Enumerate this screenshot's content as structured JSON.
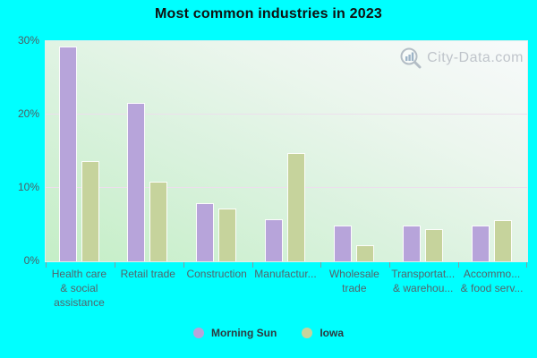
{
  "title": "Most common industries in 2023",
  "watermark": {
    "text": "City-Data.com",
    "icon": "magnifier-chart-icon"
  },
  "colors": {
    "background": "#00ffff",
    "morning_sun": "#b7a4da",
    "iowa": "#c6d39c",
    "gridline": "#eddfed",
    "axis_text": "#4d5d63",
    "title_text": "#101010",
    "watermark_text": "#b6bbc3"
  },
  "chart_data": {
    "type": "bar",
    "title": "Most common industries in 2023",
    "categories": [
      "Health care & social assistance",
      "Retail trade",
      "Construction",
      "Manufacturing",
      "Wholesale trade",
      "Transportation & warehousing",
      "Accommodation & food services"
    ],
    "category_display": [
      [
        "Health care",
        "& social",
        "assistance"
      ],
      [
        "Retail trade"
      ],
      [
        "Construction"
      ],
      [
        "Manufactur..."
      ],
      [
        "Wholesale",
        "trade"
      ],
      [
        "Transportat...",
        "& warehou..."
      ],
      [
        "Accommo...",
        "& food serv..."
      ]
    ],
    "series": [
      {
        "name": "Morning Sun",
        "color": "#b7a4da",
        "values": [
          29.3,
          21.6,
          7.9,
          5.7,
          4.9,
          4.9,
          4.9
        ]
      },
      {
        "name": "Iowa",
        "color": "#c6d39c",
        "values": [
          13.7,
          10.9,
          7.2,
          14.7,
          2.2,
          4.4,
          5.6
        ]
      }
    ],
    "xlabel": "",
    "ylabel": "",
    "ylim": [
      0,
      30
    ],
    "ytick_values": [
      0,
      10,
      20,
      30
    ],
    "ytick_labels": [
      "0%",
      "10%",
      "20%",
      "30%"
    ],
    "grid": "horizontal",
    "legend_position": "bottom"
  },
  "legend": {
    "items": [
      {
        "label": "Morning Sun"
      },
      {
        "label": "Iowa"
      }
    ]
  }
}
